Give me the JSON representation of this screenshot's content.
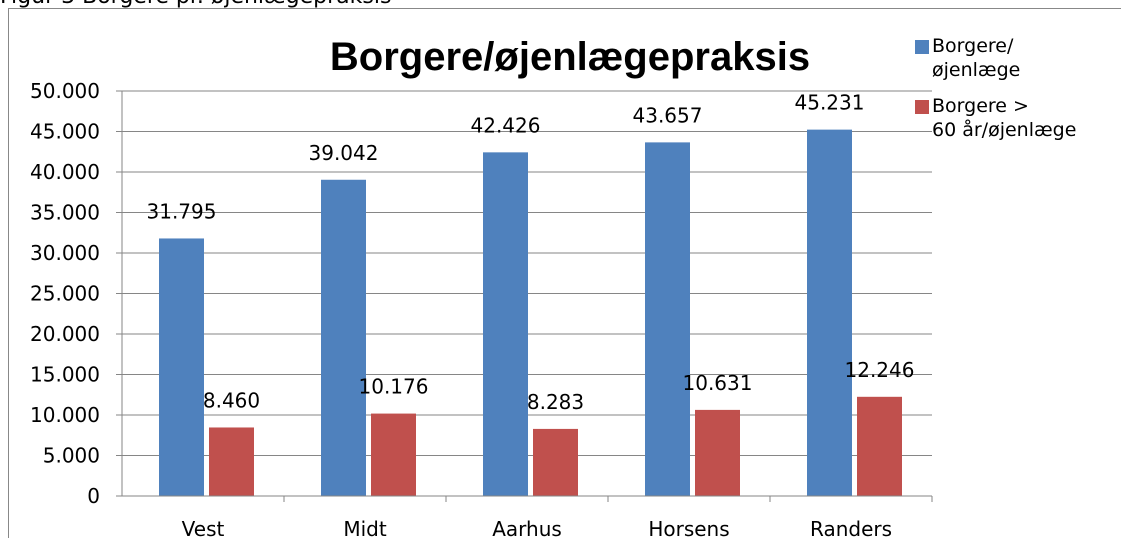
{
  "caption": "Figur 3 Borgere pr. øjenlægepraksis",
  "chart_data": {
    "type": "bar",
    "title": "Borgere/øjenlægepraksis",
    "categories": [
      "Vest",
      "Midt",
      "Aarhus",
      "Horsens",
      "Randers"
    ],
    "series": [
      {
        "name": "Borgere/\nøjenlæge",
        "color": "#4f81bd",
        "values": [
          31795,
          39042,
          42426,
          43657,
          45231
        ],
        "value_labels": [
          "31.795",
          "39.042",
          "42.426",
          "43.657",
          "45.231"
        ]
      },
      {
        "name": "Borgere >\n60 år/øjenlæge",
        "color": "#c0504d",
        "values": [
          8460,
          10176,
          8283,
          10631,
          12246
        ],
        "value_labels": [
          "8.460",
          "10.176",
          "8.283",
          "10.631",
          "12.246"
        ]
      }
    ],
    "ylim": [
      0,
      50000
    ],
    "yticks": [
      0,
      {
        "value": 5000,
        "label": "5.000"
      },
      {
        "value": 10000,
        "label": "10.000"
      },
      {
        "value": 15000,
        "label": "15.000"
      },
      {
        "value": 20000,
        "label": "20.000"
      },
      {
        "value": 25000,
        "label": "25.000"
      },
      {
        "value": 30000,
        "label": "30.000"
      },
      {
        "value": 35000,
        "label": "35.000"
      },
      {
        "value": 40000,
        "label": "40.000"
      },
      {
        "value": 45000,
        "label": "45.000"
      },
      {
        "value": 50000,
        "label": "50.000"
      }
    ],
    "grid": true,
    "legend": "right"
  }
}
